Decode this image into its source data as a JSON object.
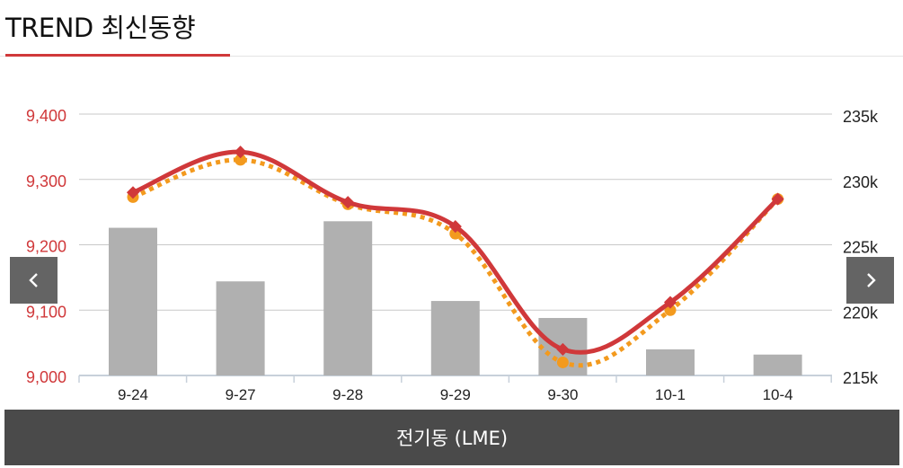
{
  "header": {
    "title": "TREND 최신동향"
  },
  "nav": {
    "prev_icon": "chevron-left-icon",
    "next_icon": "chevron-right-icon"
  },
  "footer": {
    "label": "전기동 (LME)"
  },
  "colors": {
    "accent": "#d0383a",
    "bar": "#b0b0b0",
    "dotted": "#f39a1e",
    "navbg": "#646464",
    "footerbg": "#4a4a4a"
  },
  "chart_data": {
    "type": "bar+line",
    "categories": [
      "9-24",
      "9-27",
      "9-28",
      "9-29",
      "9-30",
      "10-1",
      "10-4"
    ],
    "left_axis": {
      "ylim": [
        9000,
        9400
      ],
      "ticks": [
        "9,000",
        "9,100",
        "9,200",
        "9,300",
        "9,400"
      ]
    },
    "right_axis": {
      "ylim": [
        215,
        235
      ],
      "ticks": [
        "215k",
        "220k",
        "225k",
        "230k",
        "235k"
      ]
    },
    "bars": {
      "axis": "right",
      "values": [
        226.3,
        222.2,
        226.8,
        220.7,
        219.4,
        217.0,
        216.6
      ]
    },
    "series": [
      {
        "style": "solid",
        "axis": "left",
        "values": [
          9280,
          9342,
          9265,
          9228,
          9040,
          9112,
          9270
        ]
      },
      {
        "style": "dotted",
        "axis": "left",
        "values": [
          9273,
          9330,
          9262,
          9217,
          9020,
          9100,
          9270
        ]
      }
    ],
    "grid": true
  }
}
